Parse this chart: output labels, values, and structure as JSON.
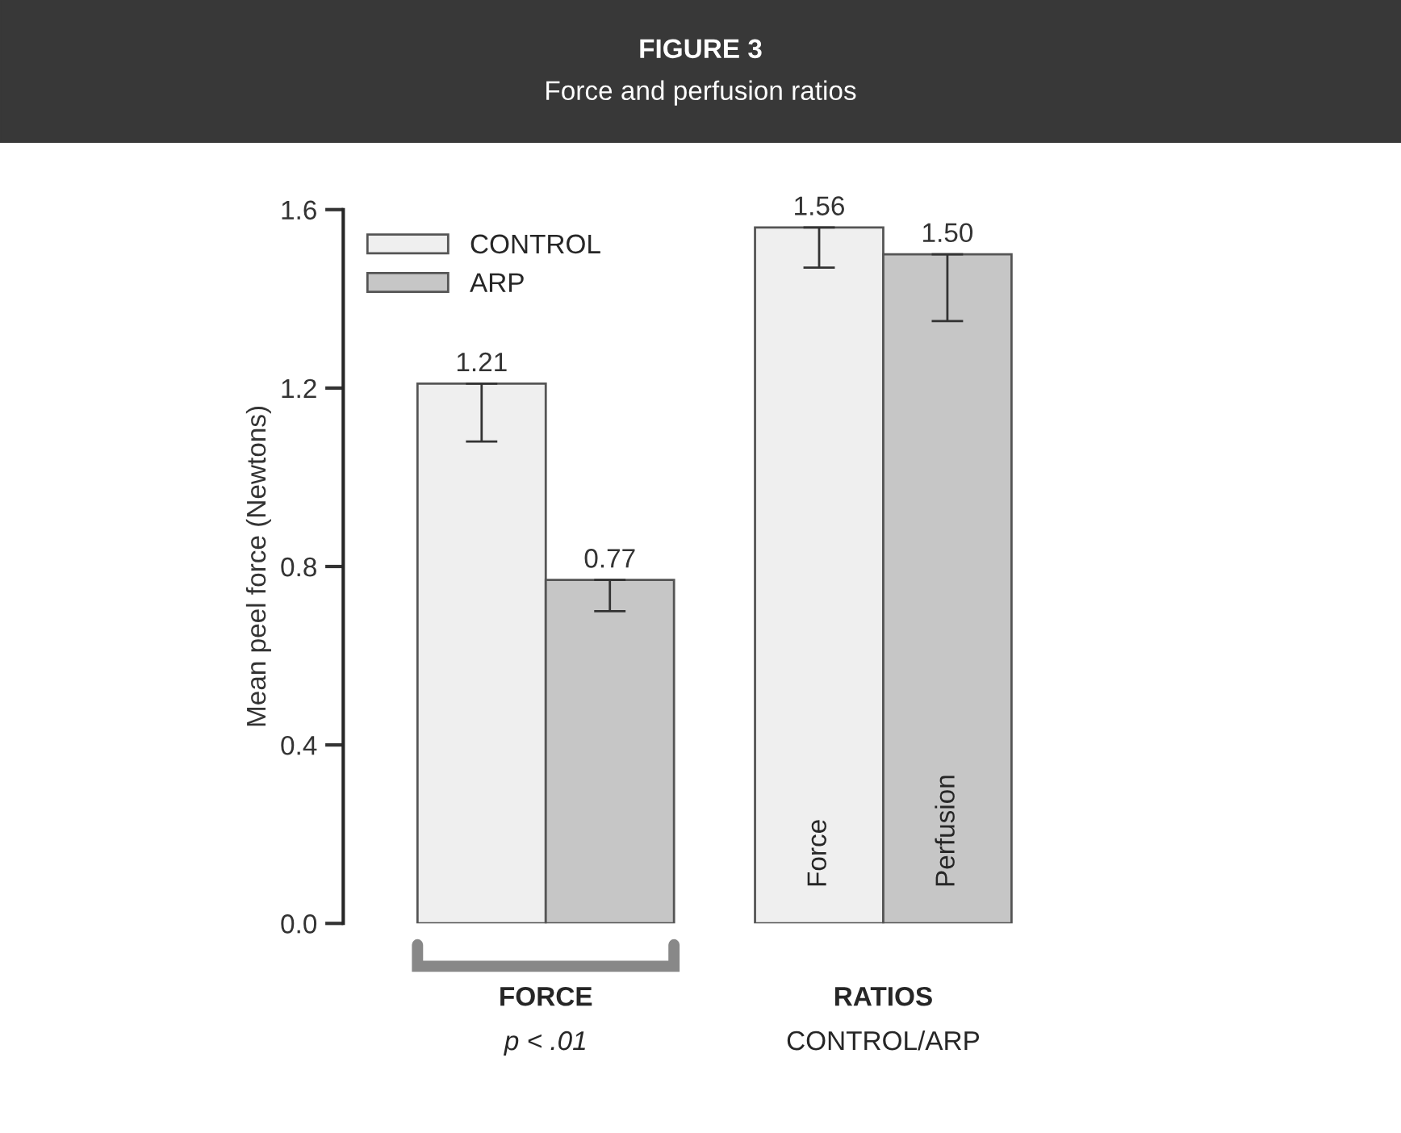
{
  "chart_data": {
    "type": "bar",
    "title": "FIGURE 3",
    "subtitle": "Force and perfusion ratios",
    "ylabel": "Mean peel force (Newtons)",
    "categories": [
      "FORCE",
      "RATIOS"
    ],
    "series": [
      {
        "name": "CONTROL",
        "color": "#efefef",
        "values": [
          1.21,
          1.56
        ],
        "value_labels": [
          "1.21",
          "1.56"
        ],
        "errors": [
          [
            1.08,
            1.21
          ],
          [
            1.47,
            1.56
          ]
        ]
      },
      {
        "name": "ARP",
        "color": "#c6c6c6",
        "values": [
          0.77,
          1.5
        ],
        "value_labels": [
          "0.77",
          "1.50"
        ],
        "errors": [
          [
            0.7,
            0.77
          ],
          [
            1.35,
            1.5
          ]
        ]
      }
    ],
    "annotations": [
      "p < .01",
      "CONTROL/ARP",
      "Force",
      "Perfusion"
    ],
    "ylim": [
      0,
      1.6
    ],
    "yticks": [
      {
        "value": 0,
        "label": "0.0"
      },
      {
        "value": 0.4,
        "label": "0.4"
      },
      {
        "value": 0.8,
        "label": "0.8"
      },
      {
        "value": 1.2,
        "label": "1.2"
      },
      {
        "value": 1.6,
        "label": "1.6"
      }
    ],
    "legend": "top left",
    "grid": false
  }
}
